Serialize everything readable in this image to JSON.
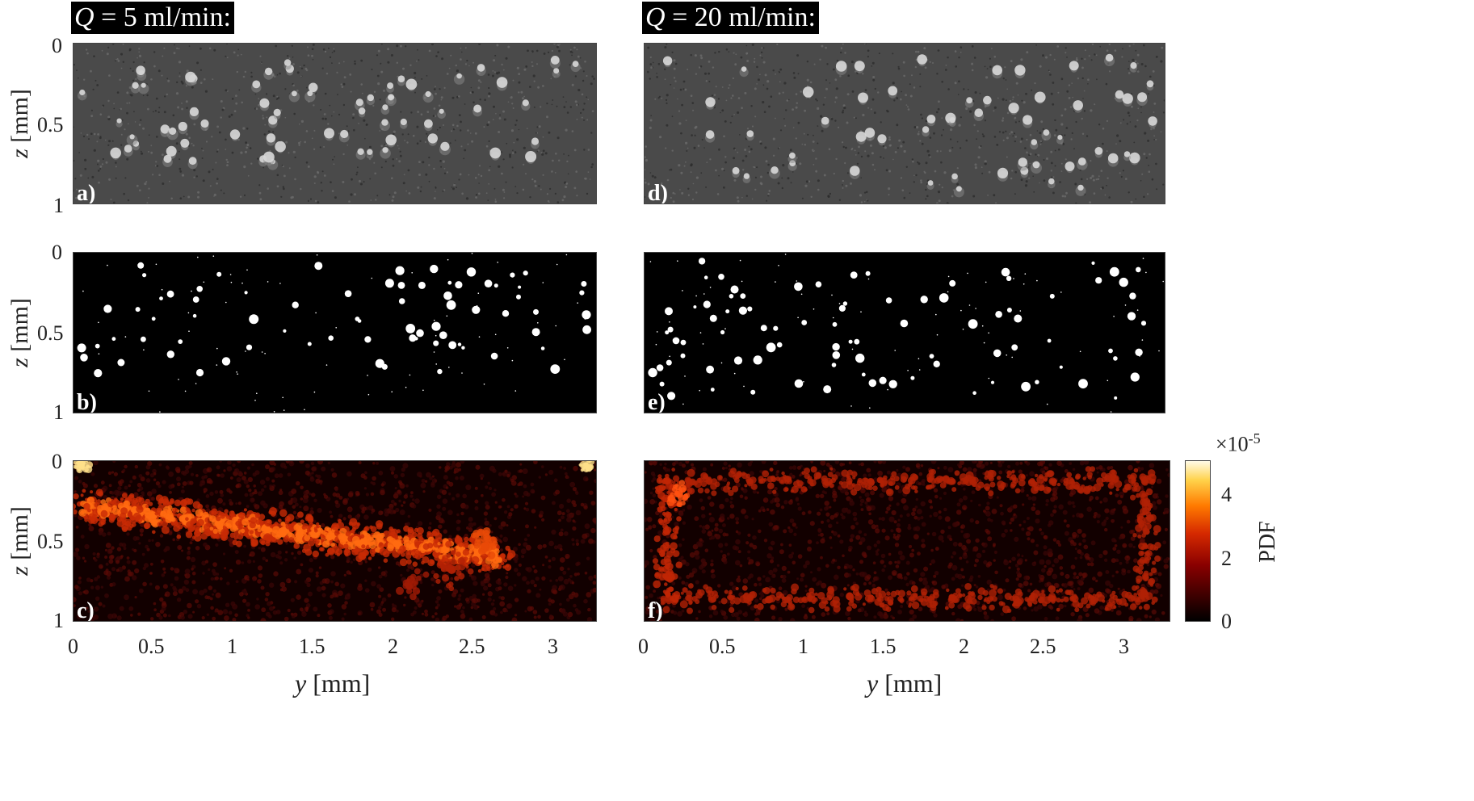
{
  "headers": {
    "left": {
      "q": "Q",
      "rest": " = 5 ml/min:"
    },
    "right": {
      "q": "Q",
      "rest": " = 20 ml/min:"
    }
  },
  "panel_labels": {
    "a": "a)",
    "b": "b)",
    "c": "c)",
    "d": "d)",
    "e": "e)",
    "f": "f)"
  },
  "y_axis": {
    "var": "z",
    "unit": " [mm]",
    "ticks": [
      "0",
      "0.5",
      "1"
    ]
  },
  "x_axis": {
    "var": "y",
    "unit": " [mm]",
    "ticks": [
      "0",
      "0.5",
      "1",
      "1.5",
      "2",
      "2.5",
      "3"
    ]
  },
  "colorbar": {
    "label": "PDF",
    "exponent": "×10",
    "exponent_power": "-5",
    "ticks": [
      "0",
      "2",
      "4"
    ],
    "range": [
      0,
      5
    ]
  },
  "colors": {
    "ultrasound_bg": "#4a4a4a",
    "binary_bg": "#000000",
    "heat_low": "#000000",
    "heat_high": "#fffbe8"
  }
}
